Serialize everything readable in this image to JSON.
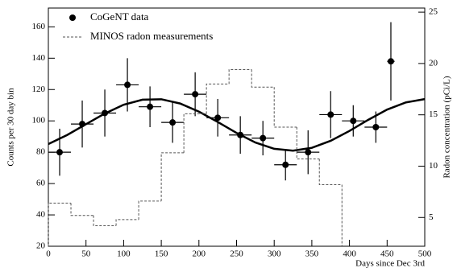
{
  "chart_data": {
    "type": "scatter",
    "xlabel": "Days since Dec 3rd",
    "ylabel": "Counts per 30 day bin",
    "y2label": "Radon concentration (pCi/L)",
    "xlim": [
      0,
      500
    ],
    "xticks": [
      0,
      50,
      100,
      150,
      200,
      250,
      300,
      350,
      400,
      450,
      500
    ],
    "ylim": [
      20,
      172
    ],
    "yticks": [
      20,
      40,
      60,
      80,
      100,
      120,
      140,
      160
    ],
    "y2lim": [
      2.2,
      25.4
    ],
    "y2ticks": [
      5,
      10,
      15,
      20,
      25
    ],
    "series": [
      {
        "type": "errorbar",
        "name": "CoGeNT data",
        "color": "#000000",
        "x": [
          15,
          45,
          75,
          105,
          135,
          165,
          195,
          225,
          255,
          285,
          315,
          345,
          375,
          405,
          435,
          455
        ],
        "values": [
          80,
          98,
          105,
          123,
          109,
          99,
          117,
          102,
          91,
          89,
          72,
          80,
          104,
          100,
          96,
          138
        ],
        "yerr": [
          15,
          15,
          15,
          17,
          13,
          13,
          14,
          12,
          12,
          11,
          10,
          14,
          15,
          10,
          10,
          25
        ],
        "xerr": [
          15,
          15,
          15,
          15,
          15,
          15,
          15,
          15,
          15,
          15,
          15,
          15,
          15,
          15,
          15,
          5
        ]
      },
      {
        "type": "line",
        "color": "#000000",
        "x": [
          0,
          25,
          50,
          75,
          100,
          125,
          150,
          175,
          200,
          225,
          250,
          275,
          300,
          325,
          350,
          375,
          400,
          425,
          450,
          475,
          500
        ],
        "values": [
          85.2,
          91.0,
          97.9,
          104.7,
          110.3,
          113.5,
          113.8,
          111.1,
          105.9,
          99.3,
          92.3,
          86.2,
          82.2,
          81.0,
          82.8,
          87.3,
          93.6,
          100.7,
          107.2,
          111.8,
          113.9
        ]
      },
      {
        "type": "step",
        "name": "MINOS radon measurements",
        "color": "#555555",
        "axis": "y2",
        "bins": [
          0,
          30,
          60,
          90,
          120,
          150,
          180,
          210,
          240,
          270,
          300,
          330,
          360,
          390
        ],
        "values": [
          6.4,
          5.2,
          4.2,
          4.8,
          6.6,
          11.3,
          15.1,
          18.0,
          19.4,
          17.7,
          13.8,
          10.7,
          8.2
        ]
      }
    ]
  }
}
